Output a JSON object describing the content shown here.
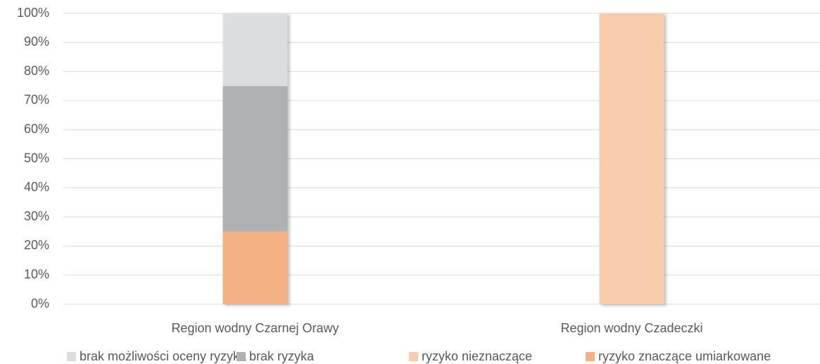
{
  "chart_data": {
    "type": "stacked_bar",
    "categories": [
      "Region wodny Czarnej Orawy",
      "Region wodny Czadeczki"
    ],
    "series": [
      {
        "name": "brak możliwości oceny ryzyka",
        "color": "#dcdddf",
        "values": [
          25,
          0
        ]
      },
      {
        "name": "brak ryzyka",
        "color": "#b0b1b4",
        "values": [
          50,
          0
        ]
      },
      {
        "name": "ryzyko nieznaczące",
        "color": "#f8cbad",
        "values": [
          0,
          100
        ]
      },
      {
        "name": "ryzyko znaczące umiarkowane",
        "color": "#f4b183",
        "values": [
          25,
          0
        ]
      }
    ],
    "ylim": [
      0,
      100
    ],
    "yticks": [
      {
        "value": 0,
        "label": "0%"
      },
      {
        "value": 10,
        "label": "10%"
      },
      {
        "value": 20,
        "label": "20%"
      },
      {
        "value": 30,
        "label": "30%"
      },
      {
        "value": 40,
        "label": "40%"
      },
      {
        "value": 50,
        "label": "50%"
      },
      {
        "value": 60,
        "label": "60%"
      },
      {
        "value": 70,
        "label": "70%"
      },
      {
        "value": 80,
        "label": "80%"
      },
      {
        "value": 90,
        "label": "90%"
      },
      {
        "value": 100,
        "label": "100%"
      }
    ],
    "grid": true,
    "legend": "bottom"
  }
}
